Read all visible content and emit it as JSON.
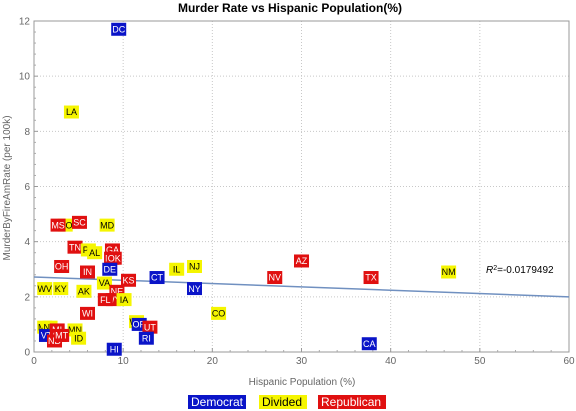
{
  "chart_data": {
    "type": "scatter",
    "title": "Murder Rate vs Hispanic Population(%)",
    "xlabel": "Hispanic Population (%)",
    "ylabel": "MurderByFireAmRate  (per 100k)",
    "xlim": [
      0,
      60
    ],
    "ylim": [
      0,
      12
    ],
    "x_ticks": [
      "0",
      "10",
      "20",
      "30",
      "40",
      "50",
      "60"
    ],
    "y_ticks": [
      "0",
      "2",
      "4",
      "6",
      "8",
      "10",
      "12"
    ],
    "grid": true,
    "legend_position": "bottom",
    "colors": {
      "Democrat": "#0a14c8",
      "Divided": "#f5f500",
      "Republican": "#e01010",
      "trend": "#7090c0",
      "grid": "#c8c8c8"
    },
    "categories": [
      "Democrat",
      "Divided",
      "Republican"
    ],
    "points": [
      {
        "label": "DC",
        "x": 9.5,
        "y": 11.7,
        "group": "Democrat"
      },
      {
        "label": "LA",
        "x": 4.2,
        "y": 8.7,
        "group": "Divided"
      },
      {
        "label": "MD",
        "x": 8.2,
        "y": 4.6,
        "group": "Divided"
      },
      {
        "label": "MO",
        "x": 3.5,
        "y": 4.6,
        "group": "Divided"
      },
      {
        "label": "MS",
        "x": 2.7,
        "y": 4.6,
        "group": "Republican"
      },
      {
        "label": "SC",
        "x": 5.1,
        "y": 4.7,
        "group": "Republican"
      },
      {
        "label": "TN",
        "x": 4.6,
        "y": 3.8,
        "group": "Republican"
      },
      {
        "label": "PA",
        "x": 6.1,
        "y": 3.7,
        "group": "Divided"
      },
      {
        "label": "AL",
        "x": 6.8,
        "y": 3.6,
        "group": "Divided"
      },
      {
        "label": "GA",
        "x": 8.8,
        "y": 3.7,
        "group": "Republican"
      },
      {
        "label": "NC",
        "x": 8.7,
        "y": 3.4,
        "group": "Republican"
      },
      {
        "label": "OK",
        "x": 9.0,
        "y": 3.4,
        "group": "Republican"
      },
      {
        "label": "DE",
        "x": 8.5,
        "y": 3.0,
        "group": "Democrat"
      },
      {
        "label": "OH",
        "x": 3.1,
        "y": 3.1,
        "group": "Republican"
      },
      {
        "label": "IN",
        "x": 6.0,
        "y": 2.9,
        "group": "Republican"
      },
      {
        "label": "KS",
        "x": 10.6,
        "y": 2.6,
        "group": "Republican"
      },
      {
        "label": "CT",
        "x": 13.8,
        "y": 2.7,
        "group": "Democrat"
      },
      {
        "label": "IL",
        "x": 16.0,
        "y": 3.0,
        "group": "Divided"
      },
      {
        "label": "NJ",
        "x": 18.0,
        "y": 3.1,
        "group": "Divided"
      },
      {
        "label": "NY",
        "x": 18.0,
        "y": 2.3,
        "group": "Democrat"
      },
      {
        "label": "AZ",
        "x": 30.0,
        "y": 3.3,
        "group": "Republican"
      },
      {
        "label": "NV",
        "x": 27.0,
        "y": 2.7,
        "group": "Republican"
      },
      {
        "label": "TX",
        "x": 37.8,
        "y": 2.7,
        "group": "Republican"
      },
      {
        "label": "NM",
        "x": 46.5,
        "y": 2.9,
        "group": "Divided"
      },
      {
        "label": "WV",
        "x": 1.2,
        "y": 2.3,
        "group": "Divided"
      },
      {
        "label": "KY",
        "x": 3.0,
        "y": 2.3,
        "group": "Divided"
      },
      {
        "label": "AK",
        "x": 5.6,
        "y": 2.2,
        "group": "Divided"
      },
      {
        "label": "VA",
        "x": 7.9,
        "y": 2.5,
        "group": "Divided"
      },
      {
        "label": "NE",
        "x": 9.3,
        "y": 2.2,
        "group": "Republican"
      },
      {
        "label": "WY",
        "x": 8.9,
        "y": 1.9,
        "group": "Republican"
      },
      {
        "label": "FL",
        "x": 8.0,
        "y": 1.9,
        "group": "Republican"
      },
      {
        "label": "IA",
        "x": 10.1,
        "y": 1.9,
        "group": "Divided"
      },
      {
        "label": "WI",
        "x": 6.0,
        "y": 1.4,
        "group": "Republican"
      },
      {
        "label": "CO",
        "x": 20.7,
        "y": 1.4,
        "group": "Divided"
      },
      {
        "label": "WA",
        "x": 11.5,
        "y": 1.1,
        "group": "Divided"
      },
      {
        "label": "OR",
        "x": 11.8,
        "y": 1.0,
        "group": "Democrat"
      },
      {
        "label": "UT",
        "x": 13.0,
        "y": 0.9,
        "group": "Republican"
      },
      {
        "label": "RI",
        "x": 12.6,
        "y": 0.5,
        "group": "Democrat"
      },
      {
        "label": "ME",
        "x": 1.2,
        "y": 0.9,
        "group": "Divided"
      },
      {
        "label": "NH",
        "x": 1.8,
        "y": 0.9,
        "group": "Divided"
      },
      {
        "label": "VT",
        "x": 1.4,
        "y": 0.6,
        "group": "Democrat"
      },
      {
        "label": "MI",
        "x": 2.6,
        "y": 0.8,
        "group": "Republican"
      },
      {
        "label": "SD",
        "x": 2.8,
        "y": 0.6,
        "group": "Republican"
      },
      {
        "label": "MN",
        "x": 4.6,
        "y": 0.8,
        "group": "Divided"
      },
      {
        "label": "ND",
        "x": 2.3,
        "y": 0.4,
        "group": "Republican"
      },
      {
        "label": "MT",
        "x": 3.1,
        "y": 0.6,
        "group": "Republican"
      },
      {
        "label": "ID",
        "x": 5.0,
        "y": 0.5,
        "group": "Divided"
      },
      {
        "label": "HI",
        "x": 9.0,
        "y": 0.1,
        "group": "Democrat"
      },
      {
        "label": "CA",
        "x": 37.6,
        "y": 0.3,
        "group": "Democrat"
      }
    ],
    "trend_line": {
      "x": [
        0,
        60
      ],
      "y": [
        2.72,
        2.0
      ]
    },
    "r2_label": "R",
    "r2_sup": "2",
    "r2_value": "=-0.0179492"
  }
}
